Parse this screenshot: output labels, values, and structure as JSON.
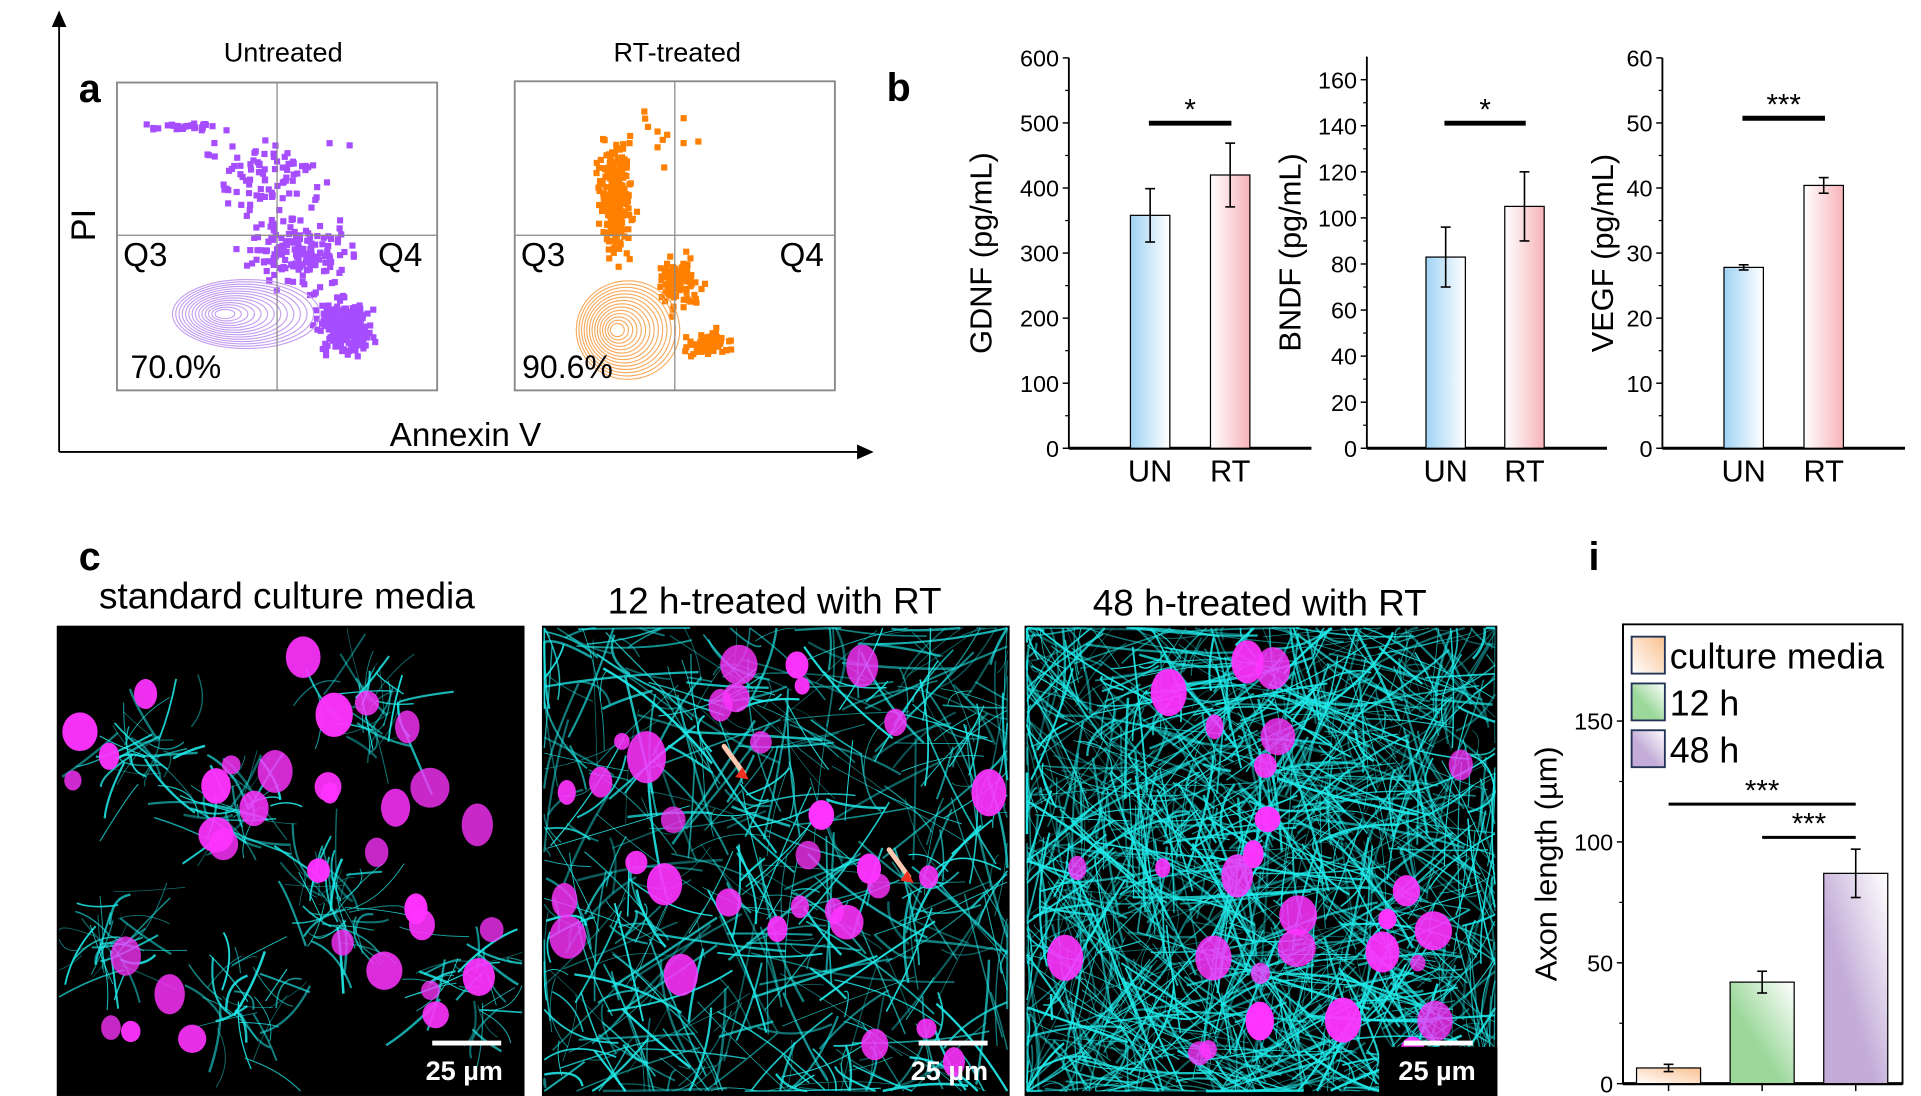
{
  "panel_a": {
    "letter": "a",
    "y_axis_label": "PI",
    "x_axis_label": "Annexin V",
    "plots": [
      {
        "title": "Untreated",
        "q3": "Q3",
        "q4": "Q4",
        "percent": "70.0%",
        "color": "#a64dff"
      },
      {
        "title": "RT-treated",
        "q3": "Q3",
        "q4": "Q4",
        "percent": "90.6%",
        "color": "#ff8000"
      }
    ]
  },
  "panel_b": {
    "letter": "b"
  },
  "panel_c": {
    "letter": "c",
    "images": [
      {
        "title": "standard culture media",
        "scale_bar": "25 µm"
      },
      {
        "title": "12 h-treated with RT",
        "scale_bar": "25 µm"
      },
      {
        "title": "48 h-treated with RT",
        "scale_bar": "25 µm"
      }
    ],
    "colors": {
      "cytoskeleton": "#20e8e8",
      "nuclei": "#ff33ff"
    }
  },
  "panel_i": {
    "letter": "i"
  },
  "chart_data": [
    {
      "type": "bar",
      "ylabel": "GDNF (pg/mL)",
      "categories": [
        "UN",
        "RT"
      ],
      "values": [
        358,
        420
      ],
      "errors": [
        41,
        49
      ],
      "ylim": [
        0,
        600
      ],
      "yticks": [
        0,
        100,
        200,
        300,
        400,
        500,
        600
      ],
      "significance": [
        {
          "from": 0,
          "to": 1,
          "label": "*"
        }
      ],
      "colors": [
        "#a8d8f5",
        "#f7b9bd"
      ]
    },
    {
      "type": "bar",
      "ylabel": "BNDF (pg/mL)",
      "categories": [
        "UN",
        "RT"
      ],
      "values": [
        83,
        105
      ],
      "errors": [
        13,
        15
      ],
      "ylim": [
        0,
        170
      ],
      "yticks": [
        0,
        20,
        40,
        60,
        80,
        100,
        120,
        140,
        160
      ],
      "significance": [
        {
          "from": 0,
          "to": 1,
          "label": "*"
        }
      ],
      "colors": [
        "#a8d8f5",
        "#f7b9bd"
      ]
    },
    {
      "type": "bar",
      "ylabel": "VEGF (pg/mL)",
      "categories": [
        "UN",
        "RT"
      ],
      "values": [
        27.8,
        40.4
      ],
      "errors": [
        0.4,
        1.2
      ],
      "ylim": [
        0,
        60
      ],
      "yticks": [
        0,
        10,
        20,
        30,
        40,
        50,
        60
      ],
      "significance": [
        {
          "from": 0,
          "to": 1,
          "label": "***"
        }
      ],
      "colors": [
        "#a8d8f5",
        "#f7b9bd"
      ]
    },
    {
      "type": "bar",
      "ylabel": "Axon length (µm)",
      "categories": [
        "culture media",
        "12 h",
        "48 h"
      ],
      "values": [
        6.5,
        42,
        87
      ],
      "errors": [
        1.5,
        4.5,
        10
      ],
      "ylim": [
        0,
        190
      ],
      "yticks": [
        0,
        50,
        100,
        150
      ],
      "legend": [
        "culture media",
        "12 h",
        "48 h"
      ],
      "legend_position": "top-left",
      "significance": [
        {
          "from": 0,
          "to": 2,
          "label": "***"
        },
        {
          "from": 1,
          "to": 2,
          "label": "***"
        }
      ],
      "colors": [
        "#f9c394",
        "#9bd89a",
        "#c3acd8"
      ]
    }
  ]
}
